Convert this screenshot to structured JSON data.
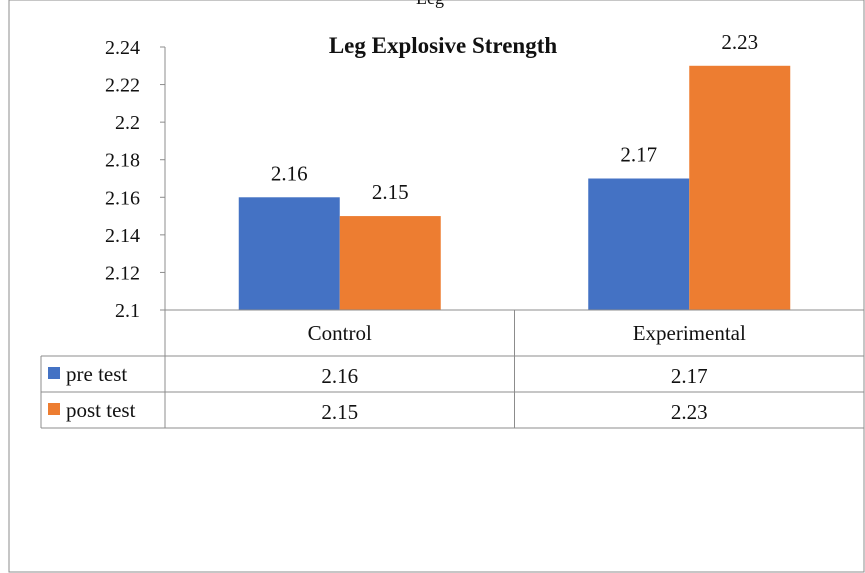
{
  "chart_data": {
    "type": "bar",
    "title": "Leg Explosive Strength",
    "top_label": "Leg",
    "categories": [
      "Control",
      "Experimental"
    ],
    "series": [
      {
        "name": "pre test",
        "values": [
          2.16,
          2.17
        ],
        "color": "#4472C4"
      },
      {
        "name": "post test",
        "values": [
          2.15,
          2.23
        ],
        "color": "#ED7D31"
      }
    ],
    "ylim": [
      2.1,
      2.24
    ],
    "yticks": [
      "2.1",
      "2.12",
      "2.14",
      "2.16",
      "2.18",
      "2.2",
      "2.22",
      "2.24"
    ],
    "data_labels": [
      [
        "2.16",
        "2.17"
      ],
      [
        "2.15",
        "2.23"
      ]
    ],
    "data_table": true,
    "grid": false,
    "legend": "data-table-left"
  }
}
